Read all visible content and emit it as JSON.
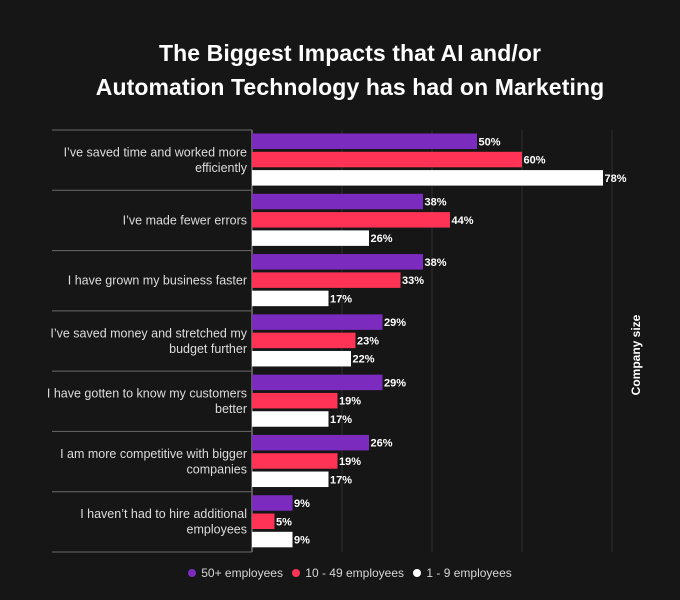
{
  "chart_data": {
    "type": "bar",
    "orientation": "horizontal",
    "title": [
      "The Biggest Impacts that AI and/or",
      "Automation Technology has had on Marketing"
    ],
    "categories": [
      [
        "I’ve saved time and worked more",
        "efficiently"
      ],
      [
        "I’ve made fewer errors"
      ],
      [
        "I have grown my business faster"
      ],
      [
        "I’ve saved money and stretched my",
        "budget further"
      ],
      [
        "I have gotten to know my customers",
        "better"
      ],
      [
        "I am more competitive with bigger",
        "companies"
      ],
      [
        "I haven’t had to hire additional",
        "employees"
      ]
    ],
    "series": [
      {
        "name": "50+ employees",
        "color": "#7b2cbf",
        "values": [
          50,
          38,
          38,
          29,
          29,
          26,
          9
        ]
      },
      {
        "name": "10 - 49 employees",
        "color": "#ff3355",
        "values": [
          60,
          44,
          33,
          23,
          19,
          19,
          5
        ]
      },
      {
        "name": "1 - 9 employees",
        "color": "#ffffff",
        "values": [
          78,
          26,
          17,
          22,
          17,
          17,
          9
        ]
      }
    ],
    "value_suffix": "%",
    "xlim": [
      0,
      80
    ],
    "gridlines": [
      0,
      20,
      40,
      60,
      80
    ],
    "grid": true,
    "legend_position": "bottom",
    "side_label": "Company size"
  }
}
